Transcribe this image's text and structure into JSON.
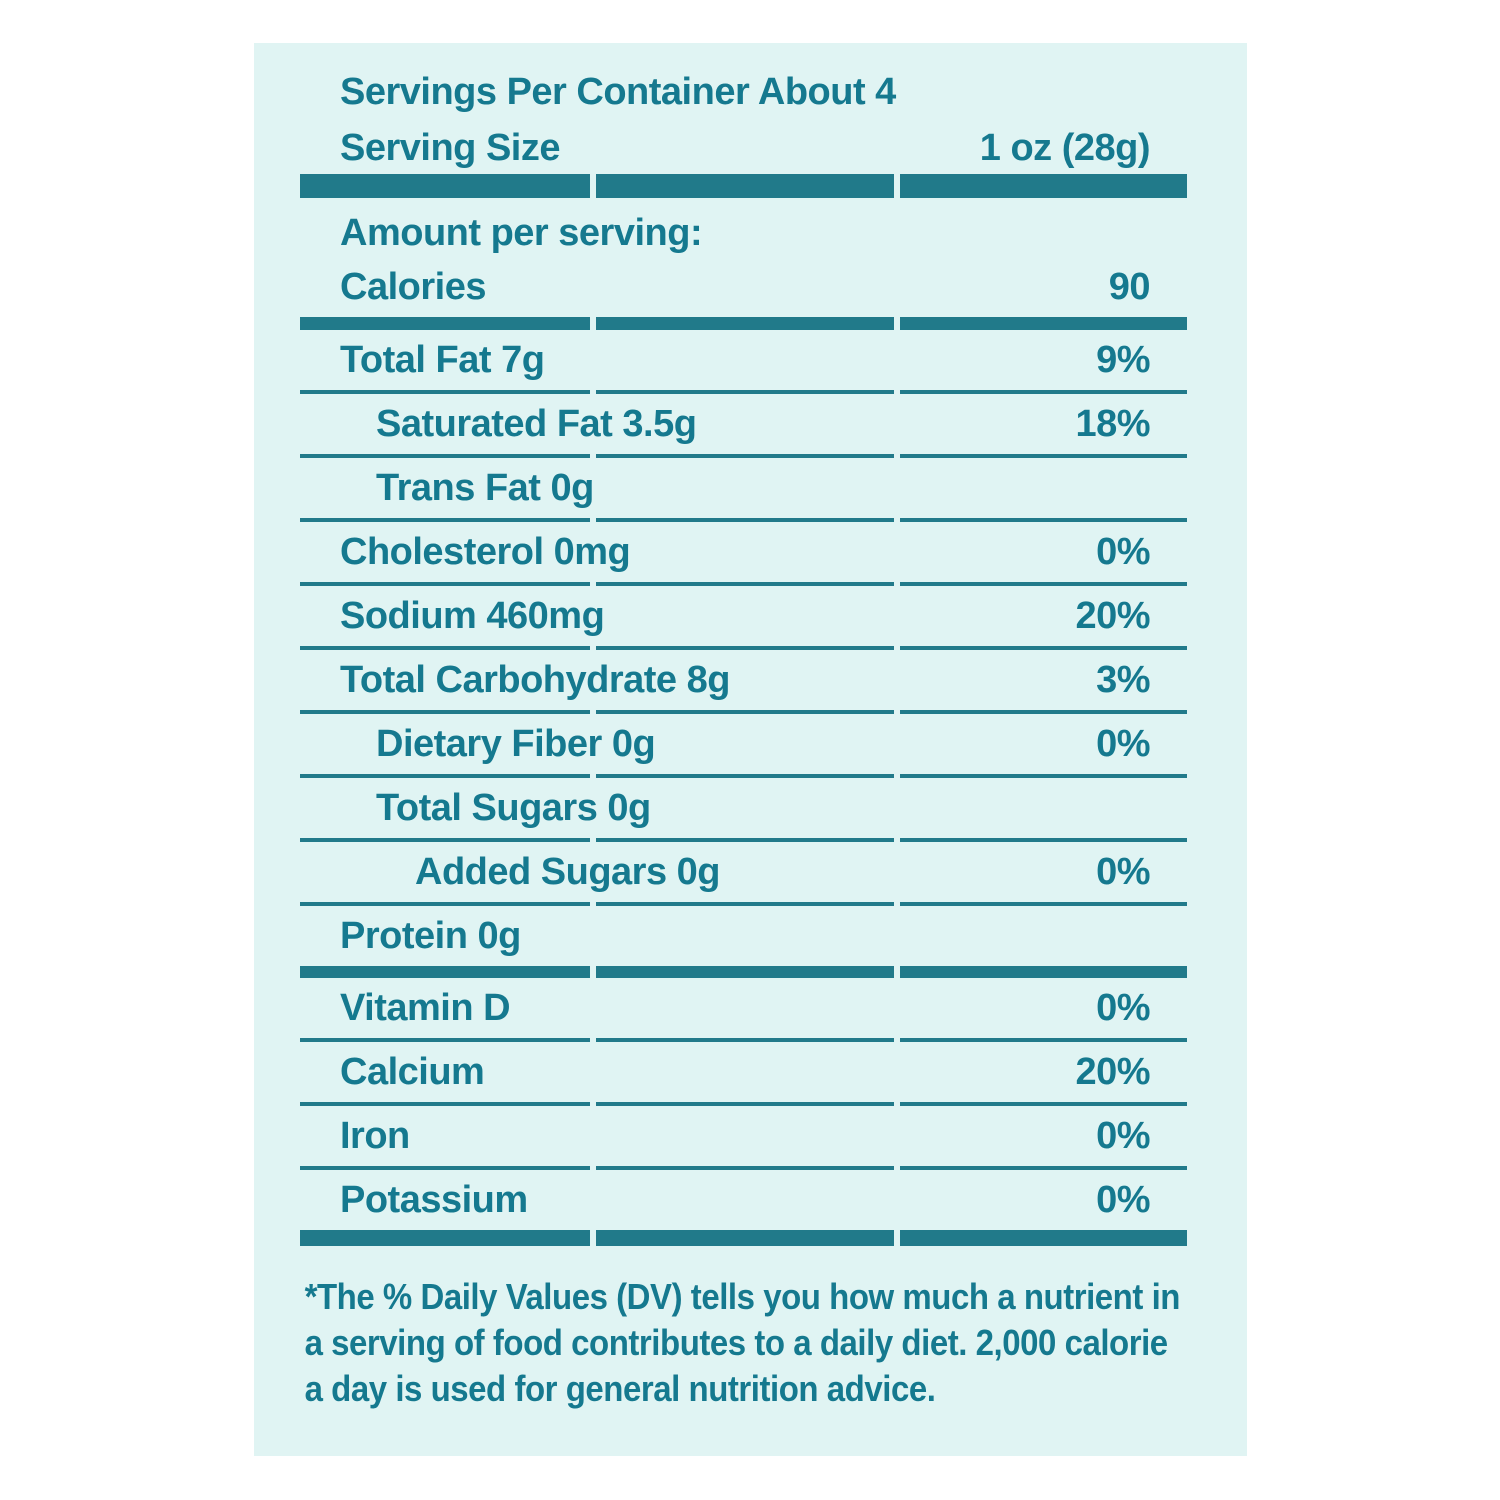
{
  "nutrition": {
    "header": {
      "servings_per_container": "Servings Per Container About 4",
      "serving_size_label": "Serving Size",
      "serving_size_value": "1 oz (28g)",
      "amount_per_serving": "Amount per serving:",
      "calories_label": "Calories",
      "calories_value": "90"
    },
    "nutrients": [
      {
        "label": "Total Fat 7g",
        "value": "9%"
      },
      {
        "label": "Saturated Fat 3.5g",
        "value": "18%"
      },
      {
        "label": "Trans Fat 0g",
        "value": ""
      },
      {
        "label": "Cholesterol 0mg",
        "value": "0%"
      },
      {
        "label": "Sodium 460mg",
        "value": "20%"
      },
      {
        "label": "Total Carbohydrate 8g",
        "value": "3%"
      },
      {
        "label": "Dietary Fiber 0g",
        "value": "0%"
      },
      {
        "label": "Total Sugars 0g",
        "value": ""
      },
      {
        "label": "Added Sugars 0g",
        "value": "0%"
      },
      {
        "label": "Protein 0g",
        "value": ""
      }
    ],
    "vitamins": [
      {
        "label": "Vitamin D",
        "value": "0%"
      },
      {
        "label": "Calcium",
        "value": "20%"
      },
      {
        "label": "Iron",
        "value": "0%"
      },
      {
        "label": "Potassium",
        "value": "0%"
      }
    ],
    "footnote": "*The % Daily Values (DV) tells you how much a nutrient in a serving of food contributes to a daily diet. 2,000 calorie a day is used for general nutrition advice."
  },
  "colors": {
    "accent_text": "#15798f",
    "accent_bar": "#217a8a",
    "card_bg": "#e0f4f3"
  }
}
